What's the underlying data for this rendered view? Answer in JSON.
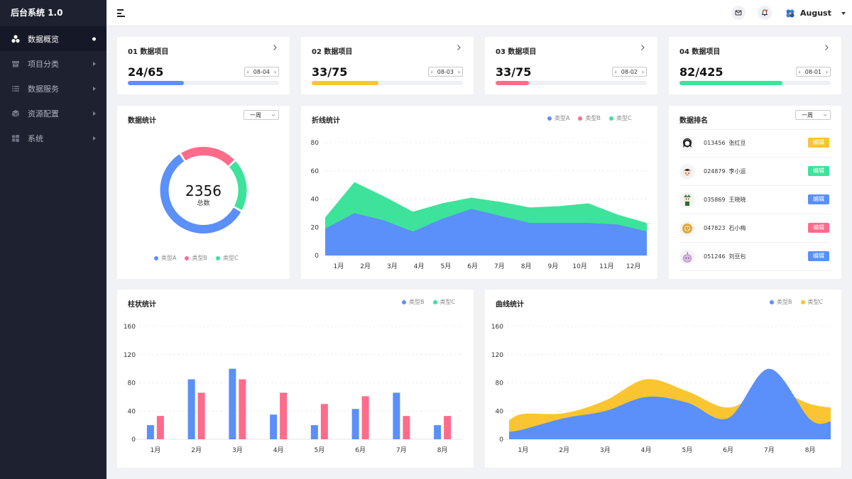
{
  "app": {
    "title": "后台系统  1.0"
  },
  "sidebar": {
    "items": [
      {
        "label": "数据概览",
        "icon": "cluster-icon",
        "active": true
      },
      {
        "label": "项目分类",
        "icon": "box-icon"
      },
      {
        "label": "数据服务",
        "icon": "list-icon"
      },
      {
        "label": "资源配置",
        "icon": "cube-icon"
      },
      {
        "label": "系统",
        "icon": "grid-icon"
      }
    ]
  },
  "header": {
    "menu_icon": "hamburger-icon",
    "mail_icon": "mail-icon",
    "bell_icon": "bell-icon",
    "user": {
      "name": "August"
    }
  },
  "stats": [
    {
      "title": "01 数据项目",
      "value": "24/65",
      "date": "08-04",
      "progress": 0.37,
      "color": "#5b8ff9"
    },
    {
      "title": "02 数据项目",
      "value": "33/75",
      "date": "08-03",
      "progress": 0.44,
      "color": "#fbc531"
    },
    {
      "title": "03 数据项目",
      "value": "33/75",
      "date": "08-02",
      "progress": 0.22,
      "color": "#ff6b8a"
    },
    {
      "title": "04 数据项目",
      "value": "82/425",
      "date": "08-01",
      "progress": 0.68,
      "color": "#3de39a"
    }
  ],
  "donut": {
    "title": "数据统计",
    "period": "一周",
    "total": "2356",
    "total_label": "总数",
    "legend": [
      "类型A",
      "类型B",
      "类型C"
    ]
  },
  "line_panel": {
    "title": "折线统计",
    "legend": [
      "类型A",
      "类型B",
      "类型C"
    ]
  },
  "ranking": {
    "title": "数据排名",
    "period": "一周",
    "rows": [
      {
        "id": "013456",
        "name": "张红豆",
        "action": "编辑",
        "color": "#fbc531"
      },
      {
        "id": "024879",
        "name": "李小运",
        "action": "编辑",
        "color": "#3de39a"
      },
      {
        "id": "035869",
        "name": "王晓晓",
        "action": "编辑",
        "color": "#5b8ff9"
      },
      {
        "id": "047823",
        "name": "石小梅",
        "action": "编辑",
        "color": "#ff6b8a"
      },
      {
        "id": "051246",
        "name": "刘豆包",
        "action": "编辑",
        "color": "#5b8ff9"
      }
    ]
  },
  "bar_panel": {
    "title": "柱状统计",
    "legend": [
      "类型B",
      "类型C"
    ]
  },
  "curve_panel": {
    "title": "曲线统计",
    "legend": [
      "类型B",
      "类型C"
    ]
  },
  "colors": {
    "blue": "#5b8ff9",
    "pink": "#ff6b8a",
    "green": "#3de39a",
    "yellow": "#fbc531"
  },
  "chart_data": [
    {
      "type": "pie",
      "categories": [
        "类型A",
        "类型B",
        "类型C"
      ],
      "values": [
        58,
        22,
        20
      ],
      "colors": [
        "#5b8ff9",
        "#ff6b8a",
        "#3de39a"
      ]
    },
    {
      "type": "area",
      "categories": [
        "1月",
        "2月",
        "3月",
        "4月",
        "5月",
        "6月",
        "7月",
        "8月",
        "9月",
        "10月",
        "11月",
        "12月"
      ],
      "ylim": [
        0,
        80
      ],
      "yticks": [
        0,
        20,
        40,
        60,
        80
      ],
      "series": [
        {
          "name": "类型A",
          "color": "#5b8ff9",
          "values": [
            19,
            30,
            25,
            17,
            26,
            33,
            28,
            23,
            23,
            23,
            22,
            17
          ]
        },
        {
          "name": "类型C",
          "color": "#3de39a",
          "values": [
            27,
            52,
            42,
            31,
            37,
            41,
            38,
            34,
            35,
            37,
            29,
            23
          ]
        }
      ]
    },
    {
      "type": "bar",
      "categories": [
        "1月",
        "2月",
        "3月",
        "4月",
        "5月",
        "6月",
        "7月",
        "8月"
      ],
      "ylim": [
        0,
        160
      ],
      "yticks": [
        0,
        40,
        80,
        120,
        160
      ],
      "series": [
        {
          "name": "类型B",
          "color": "#5b8ff9",
          "values": [
            20,
            85,
            100,
            35,
            20,
            43,
            66,
            20
          ]
        },
        {
          "name": "类型C",
          "color": "#ff6b8a",
          "values": [
            33,
            66,
            85,
            66,
            50,
            61,
            33,
            33
          ]
        }
      ]
    },
    {
      "type": "area",
      "categories": [
        "1月",
        "2月",
        "3月",
        "4月",
        "5月",
        "6月",
        "7月",
        "8月"
      ],
      "ylim": [
        0,
        160
      ],
      "yticks": [
        0,
        40,
        80,
        120,
        160
      ],
      "series": [
        {
          "name": "类型C",
          "color": "#fbc531",
          "values": [
            36,
            37,
            55,
            85,
            68,
            45,
            70,
            50
          ]
        },
        {
          "name": "类型B",
          "color": "#5b8ff9",
          "values": [
            14,
            30,
            40,
            60,
            52,
            30,
            100,
            28
          ]
        }
      ]
    }
  ]
}
